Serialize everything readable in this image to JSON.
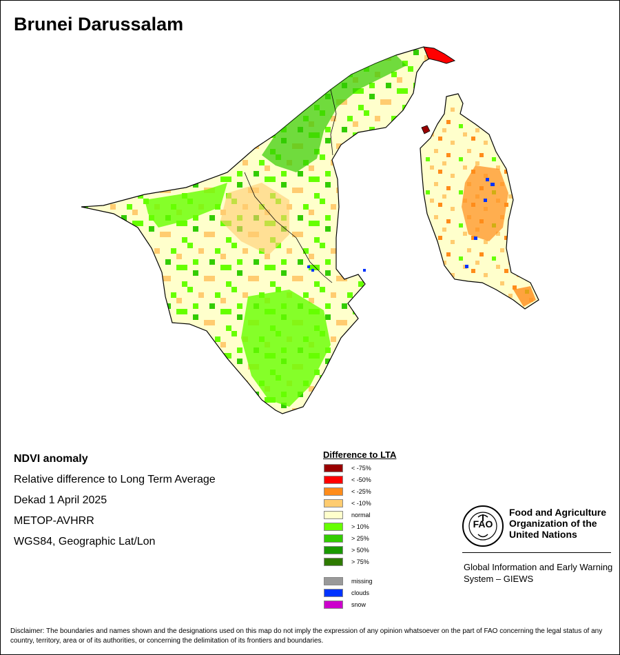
{
  "title": "Brunei Darussalam",
  "info": {
    "product": "NDVI anomaly",
    "description": "Relative difference to Long Term Average",
    "period": "Dekad 1 April 2025",
    "sensor": "METOP-AVHRR",
    "projection": "WGS84, Geographic Lat/Lon"
  },
  "legend": {
    "title": "Difference to LTA",
    "classes": [
      {
        "label": "< -75%",
        "color": "#990000"
      },
      {
        "label": "< -50%",
        "color": "#ff0000"
      },
      {
        "label": "< -25%",
        "color": "#ff8c1a"
      },
      {
        "label": "< -10%",
        "color": "#ffcc70"
      },
      {
        "label": "normal",
        "color": "#ffffcc"
      },
      {
        "label": "> 10%",
        "color": "#66ff00"
      },
      {
        "label": "> 25%",
        "color": "#33cc00"
      },
      {
        "label": "> 50%",
        "color": "#1a9900"
      },
      {
        "label": "> 75%",
        "color": "#2e7a00"
      }
    ],
    "extra": [
      {
        "label": "missing",
        "color": "#999999"
      },
      {
        "label": "clouds",
        "color": "#0033ff"
      },
      {
        "label": "snow",
        "color": "#cc00cc"
      }
    ]
  },
  "organization": {
    "name": "Food and Agriculture Organization of the United Nations",
    "system": "Global Information and Early Warning System – GIEWS"
  },
  "disclaimer": "Disclaimer: The boundaries and names shown and the designations used on this map do not imply the expression of any opinion whatsoever on the part of FAO concerning the legal status of any country, territory, area or of its authorities, or concerning the delimitation of its frontiers and boundaries."
}
